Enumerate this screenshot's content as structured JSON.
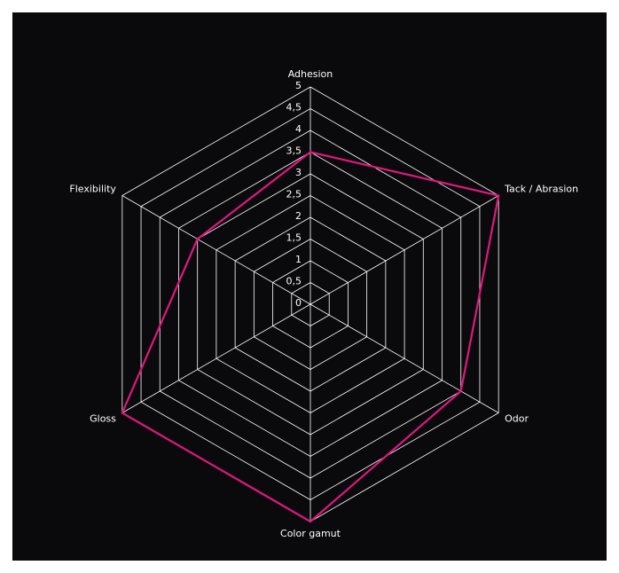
{
  "chart_data": {
    "type": "radar",
    "categories": [
      "Adhesion",
      "Tack / Abrasion",
      "Odor",
      "Color gamut",
      "Gloss",
      "Flexibility"
    ],
    "values": [
      3.5,
      5,
      4,
      5,
      5,
      3
    ],
    "color": "#e0177f",
    "ylim": [
      0,
      5
    ],
    "yticks": [
      0,
      {
        "value": 0.5,
        "label": "0,5"
      },
      1,
      {
        "value": 1.5,
        "label": "1,5"
      },
      2,
      {
        "value": 2.5,
        "label": "2,5"
      },
      3,
      {
        "value": 3.5,
        "label": "3,5"
      },
      4,
      {
        "value": 4.5,
        "label": "4,5"
      },
      5
    ],
    "grid": true
  }
}
